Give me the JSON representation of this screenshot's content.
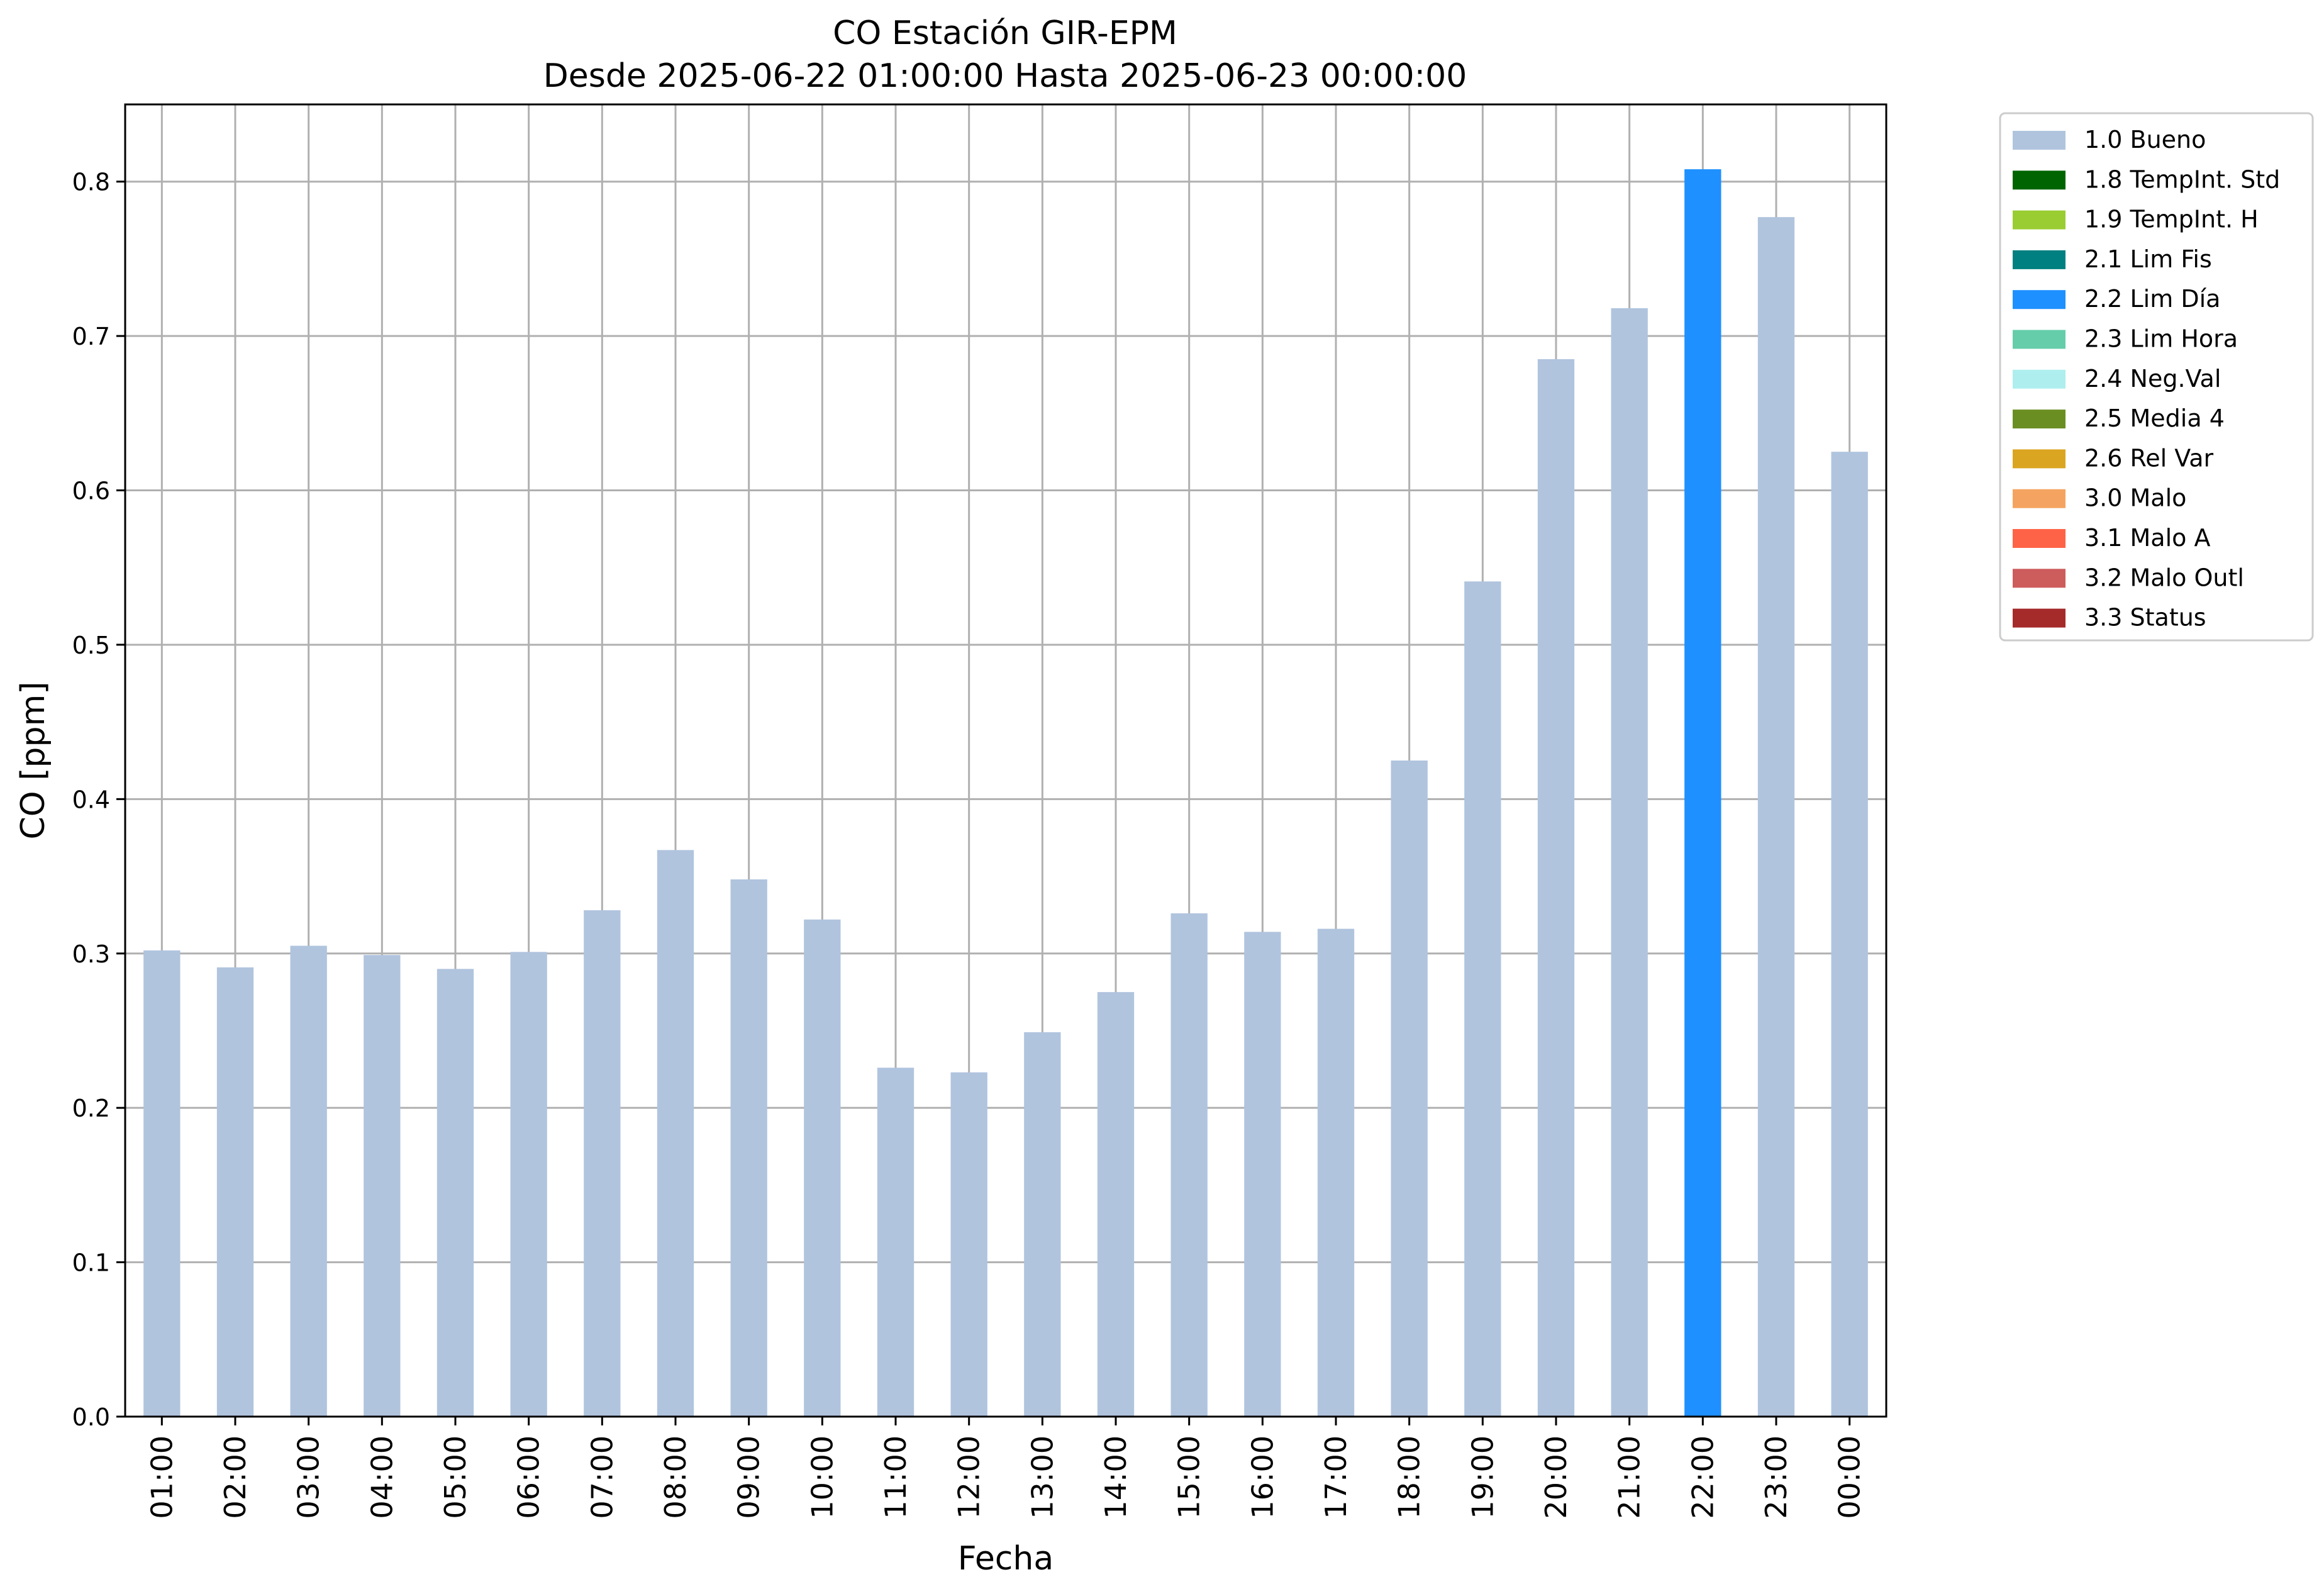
{
  "chart_data": {
    "type": "bar",
    "title": "CO Estación GIR-EPM",
    "subtitle": "Desde 2025-06-22 01:00:00 Hasta 2025-06-23 00:00:00",
    "xlabel": "Fecha",
    "ylabel": "CO [ppm]",
    "ylim": [
      0,
      0.85
    ],
    "yticks": [
      "0.0",
      "0.1",
      "0.2",
      "0.3",
      "0.4",
      "0.5",
      "0.6",
      "0.7",
      "0.8"
    ],
    "grid": true,
    "legend_position": "outside-top-right",
    "categories": [
      "01:00",
      "02:00",
      "03:00",
      "04:00",
      "05:00",
      "06:00",
      "07:00",
      "08:00",
      "09:00",
      "10:00",
      "11:00",
      "12:00",
      "13:00",
      "14:00",
      "15:00",
      "16:00",
      "17:00",
      "18:00",
      "19:00",
      "20:00",
      "21:00",
      "22:00",
      "23:00",
      "00:00"
    ],
    "values": [
      0.302,
      0.291,
      0.305,
      0.299,
      0.29,
      0.301,
      0.328,
      0.367,
      0.348,
      0.322,
      0.226,
      0.223,
      0.249,
      0.275,
      0.326,
      0.314,
      0.316,
      0.425,
      0.541,
      0.685,
      0.718,
      0.808,
      0.777,
      0.625
    ],
    "flags": [
      "1.0 Bueno",
      "1.0 Bueno",
      "1.0 Bueno",
      "1.0 Bueno",
      "1.0 Bueno",
      "1.0 Bueno",
      "1.0 Bueno",
      "1.0 Bueno",
      "1.0 Bueno",
      "1.0 Bueno",
      "1.0 Bueno",
      "1.0 Bueno",
      "1.0 Bueno",
      "1.0 Bueno",
      "1.0 Bueno",
      "1.0 Bueno",
      "1.0 Bueno",
      "1.0 Bueno",
      "1.0 Bueno",
      "1.0 Bueno",
      "1.0 Bueno",
      "2.2 Lim Día",
      "1.0 Bueno",
      "1.0 Bueno"
    ],
    "legend": [
      {
        "label": "1.0 Bueno",
        "color": "#b0c4de"
      },
      {
        "label": "1.8 TempInt. Std",
        "color": "#006400"
      },
      {
        "label": "1.9 TempInt. H",
        "color": "#9acd32"
      },
      {
        "label": "2.1 Lim Fis",
        "color": "#008080"
      },
      {
        "label": "2.2 Lim Día",
        "color": "#1e90ff"
      },
      {
        "label": "2.3 Lim Hora",
        "color": "#66cdaa"
      },
      {
        "label": "2.4 Neg.Val",
        "color": "#afeeee"
      },
      {
        "label": "2.5 Media 4",
        "color": "#6b8e23"
      },
      {
        "label": "2.6 Rel Var",
        "color": "#daa520"
      },
      {
        "label": "3.0 Malo",
        "color": "#f4a460"
      },
      {
        "label": "3.1 Malo A",
        "color": "#ff6347"
      },
      {
        "label": "3.2 Malo Outl",
        "color": "#cd5c5c"
      },
      {
        "label": "3.3 Status",
        "color": "#a52a2a"
      }
    ]
  }
}
